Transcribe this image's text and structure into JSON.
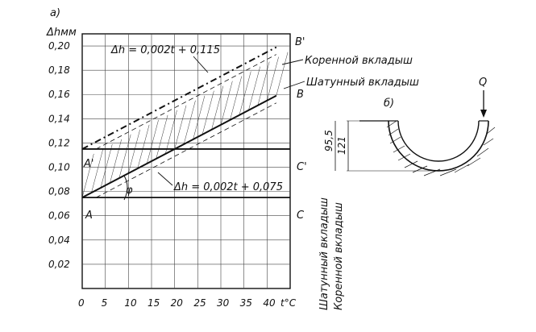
{
  "panel_a_label": "а)",
  "panel_b_label": "б)",
  "y_axis_label": "Δhмм",
  "x_axis_label": "t°C",
  "y_ticks": [
    "0,20",
    "0,18",
    "0,16",
    "0,14",
    "0,12",
    "0,10",
    "0,08",
    "0,06",
    "0,04",
    "0,02"
  ],
  "x_ticks": [
    "0",
    "5",
    "10",
    "15",
    "20",
    "25",
    "30",
    "35",
    "40"
  ],
  "upper_formula": "Δh = 0,002t + 0,115",
  "lower_formula": "Δh = 0,002t + 0,075",
  "point_labels": {
    "A": "A",
    "A_prime": "A'",
    "B": "B",
    "B_prime": "B'",
    "C": "C",
    "C_prime": "C'"
  },
  "angle_label": "φ",
  "legend": {
    "main_bearing": "Коренной вкладыш",
    "rod_bearing": "Шатунный вкладыш"
  },
  "vertical_legend": {
    "rod_bearing": "Шатунный вкладыш",
    "main_bearing": "Коренной вкладыш"
  },
  "bearing_sketch": {
    "force_label": "Q",
    "dim_outer": "95,5",
    "dim_inner": "121"
  },
  "chart_data": {
    "type": "line",
    "x": [
      0,
      42
    ],
    "series": [
      {
        "name": "Коренной вкладыш",
        "slope": 0.002,
        "intercept": 0.115,
        "values": [
          0.115,
          0.199
        ]
      },
      {
        "name": "Шатунный вкладыш",
        "slope": 0.002,
        "intercept": 0.075,
        "values": [
          0.075,
          0.159
        ]
      }
    ],
    "horizontal_lines": [
      0.115,
      0.075
    ],
    "xlim": [
      0,
      45
    ],
    "ylim": [
      0,
      0.21
    ],
    "x_ticks": [
      0,
      5,
      10,
      15,
      20,
      25,
      30,
      35,
      40
    ],
    "y_ticks": [
      0.02,
      0.04,
      0.06,
      0.08,
      0.1,
      0.12,
      0.14,
      0.16,
      0.18,
      0.2
    ],
    "grid": true
  }
}
